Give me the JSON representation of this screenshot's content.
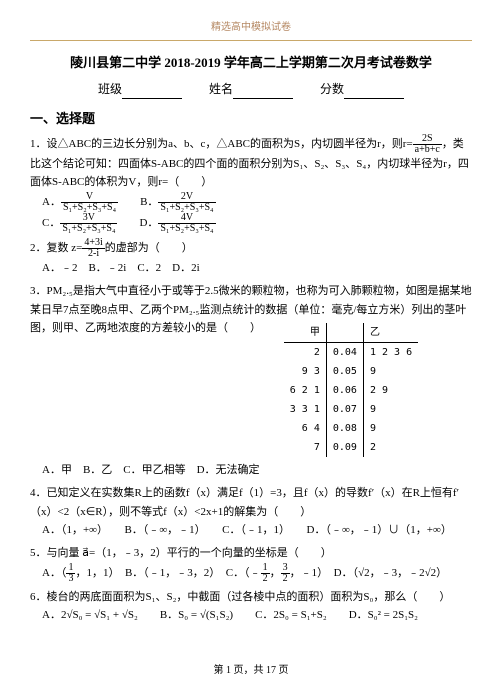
{
  "watermark": "精选高中模拟试卷",
  "title": "陵川县第二中学 2018-2019 学年高二上学期第二次月考试卷数学",
  "header": {
    "class": "班级",
    "name": "姓名",
    "score": "分数"
  },
  "section1": "一、选择题",
  "q1": {
    "text": "1．设△ABC的三边长分别为a、b、c，△ABC的面积为S，内切圆半径为r，则r=",
    "text2": "，类比这个结论可知：四面体S-ABC的四个面的面积分别为S₁、S₂、S₃、S₄，内切球半径为r，四面体S-ABC的体积为V，则r=（　　）",
    "frac_n": "2S",
    "frac_d": "a+b+c",
    "A": {
      "n": "V",
      "d": "S₁+S₂+S₃+S₄"
    },
    "B": {
      "n": "2V",
      "d": "S₁+S₂+S₃+S₄"
    },
    "C": {
      "n": "3V",
      "d": "S₁+S₂+S₃+S₄"
    },
    "D": {
      "n": "4V",
      "d": "S₁+S₂+S₃+S₄"
    }
  },
  "q2": {
    "text": "2．复数 z=",
    "frac_n": "4+3i",
    "frac_d": "2-i",
    "text2": "的虚部为（　　）",
    "opts": "A．﹣2　B．﹣2i　C．2　D．2i"
  },
  "q3": {
    "text": "3．PM₂.₅是指大气中直径小于或等于2.5微米的颗粒物，也称为可入肺颗粒物，如图是据某地某日早7点至晚8点甲、乙两个PM₂.₅监测点统计的数据（单位：毫克/每立方米）列出的茎叶图，则甲、乙两地浓度的方差较小的是（　　）",
    "stem": {
      "head": {
        "l": "甲",
        "m": "",
        "r": "乙"
      },
      "rows": [
        {
          "l": "2",
          "m": "0.04",
          "r": "1 2 3 6"
        },
        {
          "l": "9 3",
          "m": "0.05",
          "r": "9"
        },
        {
          "l": "6 2 1",
          "m": "0.06",
          "r": "2 9"
        },
        {
          "l": "3 3 1",
          "m": "0.07",
          "r": "9"
        },
        {
          "l": "6 4",
          "m": "0.08",
          "r": "9"
        },
        {
          "l": "7",
          "m": "0.09",
          "r": "2"
        }
      ]
    },
    "opts": "A．甲　B．乙　C．甲乙相等　D．无法确定"
  },
  "q4": {
    "text": "4．已知定义在实数集R上的函数f（x）满足f（1）=3，且f（x）的导数f′（x）在R上恒有f′（x）<2（x∈R），则不等式f（x）<2x+1的解集为（　　）",
    "opts": "A．（1，+∞）　　B．（﹣∞，﹣1）　　C．（﹣1，1）　　D．（﹣∞，﹣1）∪（1，+∞）"
  },
  "q5": {
    "text": "5．与向量 a⃗=（1，﹣3，2）平行的一个向量的坐标是（　　）",
    "A_n": "1",
    "A_d": "3",
    "A_t": "，1，1）",
    "B": "B．（﹣1，﹣3，2）",
    "C_n": "1",
    "C_d": "2",
    "C_n2": "3",
    "C_d2": "2",
    "C_t": "，﹣1）",
    "D": "D．（√2，﹣3，﹣2√2）"
  },
  "q6": {
    "text": "6．棱台的两底面面积为S₁、S₂，中截面（过各棱中点的面积）面积为S₀，那么（　　）",
    "A": "A．2√S₀ = √S₁ + √S₂",
    "B": "B．S₀ = √(S₁S₂)",
    "C": "C．2S₀ = S₁+S₂",
    "D": "D．S₀² = 2S₁S₂"
  },
  "footer": "第 1 页，共 17 页"
}
